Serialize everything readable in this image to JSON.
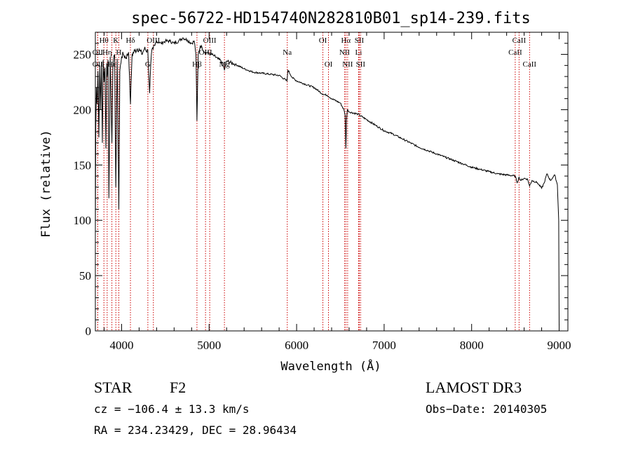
{
  "chart_data": {
    "type": "line",
    "title": "spec-56722-HD154740N282810B01_sp14-239.fits",
    "xlabel": "Wavelength (Å)",
    "ylabel": "Flux (relative)",
    "xlim": [
      3700,
      9100
    ],
    "ylim": [
      0,
      270
    ],
    "xticks": [
      4000,
      5000,
      6000,
      7000,
      8000,
      9000
    ],
    "yticks": [
      0,
      50,
      100,
      150,
      200,
      250
    ],
    "series": [
      {
        "name": "flux",
        "x": [
          3700,
          3705,
          3712,
          3720,
          3730,
          3740,
          3750,
          3760,
          3770,
          3780,
          3790,
          3800,
          3810,
          3820,
          3830,
          3835,
          3845,
          3855,
          3870,
          3889,
          3900,
          3920,
          3934,
          3950,
          3968,
          3980,
          4000,
          4020,
          4050,
          4080,
          4101,
          4120,
          4150,
          4180,
          4200,
          4230,
          4260,
          4300,
          4320,
          4340,
          4360,
          4380,
          4400,
          4450,
          4500,
          4550,
          4600,
          4650,
          4700,
          4750,
          4800,
          4830,
          4850,
          4861,
          4875,
          4900,
          4920,
          4950,
          5000,
          5050,
          5100,
          5150,
          5175,
          5200,
          5300,
          5400,
          5500,
          5600,
          5700,
          5800,
          5890,
          5900,
          5950,
          6000,
          6100,
          6200,
          6300,
          6350,
          6400,
          6500,
          6540,
          6555,
          6563,
          6570,
          6580,
          6600,
          6700,
          6800,
          6900,
          7000,
          7100,
          7200,
          7300,
          7400,
          7500,
          7600,
          7700,
          7800,
          7900,
          8000,
          8100,
          8200,
          8300,
          8400,
          8498,
          8520,
          8542,
          8560,
          8600,
          8640,
          8662,
          8690,
          8750,
          8800,
          8830,
          8860,
          8900,
          8930,
          8950,
          8980,
          8995,
          9000
        ],
        "values": [
          87,
          185,
          220,
          205,
          235,
          175,
          240,
          200,
          243,
          170,
          245,
          225,
          238,
          165,
          242,
          230,
          245,
          120,
          248,
          170,
          238,
          250,
          130,
          246,
          110,
          235,
          248,
          250,
          247,
          252,
          205,
          250,
          253,
          255,
          255,
          250,
          255,
          253,
          215,
          250,
          255,
          258,
          262,
          260,
          262,
          262,
          260,
          262,
          265,
          263,
          260,
          262,
          250,
          190,
          250,
          258,
          256,
          252,
          251,
          249,
          246,
          243,
          236,
          244,
          241,
          237,
          234,
          233,
          232,
          231,
          226,
          236,
          229,
          226,
          223,
          220,
          214,
          213,
          210,
          206,
          200,
          195,
          165,
          190,
          200,
          198,
          196,
          191,
          186,
          181,
          178,
          174,
          170,
          166,
          163,
          160,
          157,
          154,
          151,
          148,
          146,
          144,
          142,
          141,
          140,
          134,
          139,
          136,
          138,
          137,
          131,
          136,
          134,
          129,
          134,
          142,
          136,
          139,
          141,
          132,
          100,
          5
        ]
      }
    ],
    "line_markers": [
      {
        "label": "Hθ",
        "wave": 3798,
        "row": 1
      },
      {
        "label": "OII",
        "wave": 3727,
        "row": 2
      },
      {
        "label": "Hη",
        "wave": 3835,
        "row": 2
      },
      {
        "label": "OII",
        "wave": 3727,
        "row": 3
      },
      {
        "label": "Hε",
        "wave": 3889,
        "row": 3
      },
      {
        "label": "K",
        "wave": 3934,
        "row": 1
      },
      {
        "label": "H",
        "wave": 3968,
        "row": 2
      },
      {
        "label": "Hδ",
        "wave": 4101,
        "row": 1
      },
      {
        "label": "G",
        "wave": 4300,
        "row": 3
      },
      {
        "label": "OIII",
        "wave": 4363,
        "row": 1
      },
      {
        "label": "Hβ",
        "wave": 4861,
        "row": 3
      },
      {
        "label": "OIII",
        "wave": 5007,
        "row": 1
      },
      {
        "label": "OIII",
        "wave": 4959,
        "row": 2
      },
      {
        "label": "Mg",
        "wave": 5175,
        "row": 3
      },
      {
        "label": "Na",
        "wave": 5893,
        "row": 2
      },
      {
        "label": "OI",
        "wave": 6300,
        "row": 1
      },
      {
        "label": "OI",
        "wave": 6364,
        "row": 3
      },
      {
        "label": "Hα",
        "wave": 6563,
        "row": 1
      },
      {
        "label": "NII",
        "wave": 6548,
        "row": 2
      },
      {
        "label": "NII",
        "wave": 6583,
        "row": 3
      },
      {
        "label": "SII",
        "wave": 6716,
        "row": 1
      },
      {
        "label": "Li",
        "wave": 6708,
        "row": 2
      },
      {
        "label": "SII",
        "wave": 6731,
        "row": 3
      },
      {
        "label": "CaII",
        "wave": 8498,
        "row": 2
      },
      {
        "label": "CaII",
        "wave": 8542,
        "row": 1
      },
      {
        "label": "CaII",
        "wave": 8662,
        "row": 3
      }
    ],
    "colors": {
      "spectrum": "#000000",
      "marker_line": "#cc0000",
      "axis": "#000000"
    }
  },
  "info": {
    "object_type": "STAR",
    "subclass": "F2",
    "survey": "LAMOST DR3",
    "cz": "cz = −106.4 ± 13.3 km/s",
    "obs_date": "Obs−Date: 20140305",
    "radec": "RA = 234.23429, DEC =  28.96434"
  }
}
